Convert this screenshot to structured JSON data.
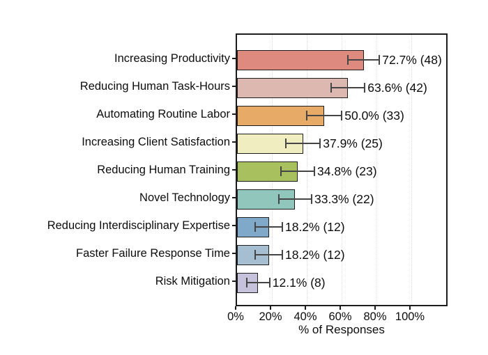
{
  "chart_data": {
    "type": "bar",
    "orientation": "horizontal",
    "title": "",
    "xlabel": "% of Responses",
    "ylabel": "",
    "legend": "none",
    "grid": "vertical-dotted",
    "categories": [
      "Increasing Productivity",
      "Reducing Human Task-Hours",
      "Automating Routine Labor",
      "Increasing Client Satisfaction",
      "Reducing Human Training",
      "Novel Technology",
      "Reducing Interdisciplinary Expertise",
      "Faster Failure Response Time",
      "Risk Mitigation"
    ],
    "values": [
      72.7,
      63.6,
      50.0,
      37.9,
      34.8,
      33.3,
      18.2,
      18.2,
      12.1
    ],
    "counts": [
      48,
      42,
      33,
      25,
      23,
      22,
      12,
      12,
      8
    ],
    "errors": [
      9.0,
      9.7,
      10.1,
      9.8,
      9.6,
      9.5,
      7.8,
      7.8,
      6.6
    ],
    "bar_labels": [
      "72.7% (48)",
      "63.6% (42)",
      "50.0% (33)",
      "37.9% (25)",
      "34.8% (23)",
      "33.3% (22)",
      "18.2% (12)",
      "18.2% (12)",
      "12.1% (8)"
    ],
    "bar_colors": [
      "#de8a7f",
      "#dcb8b0",
      "#e8ab67",
      "#f0eec1",
      "#a9c05f",
      "#90c6bc",
      "#7fa8c9",
      "#a6bed1",
      "#c6c2dc"
    ],
    "x_ticks": [
      "0%",
      "20%",
      "40%",
      "60%",
      "80%",
      "100%"
    ],
    "x_tick_values": [
      0,
      20,
      40,
      60,
      80,
      100
    ],
    "xlim": [
      0,
      121.6
    ]
  },
  "style": {
    "frame_color": "#1c1c1c",
    "bar_border_color": "#1c1c1c",
    "error_bar_color": "#454545",
    "grid_color": "#dedede",
    "text_color": "#0d0d0d",
    "background": "#ffffff"
  }
}
